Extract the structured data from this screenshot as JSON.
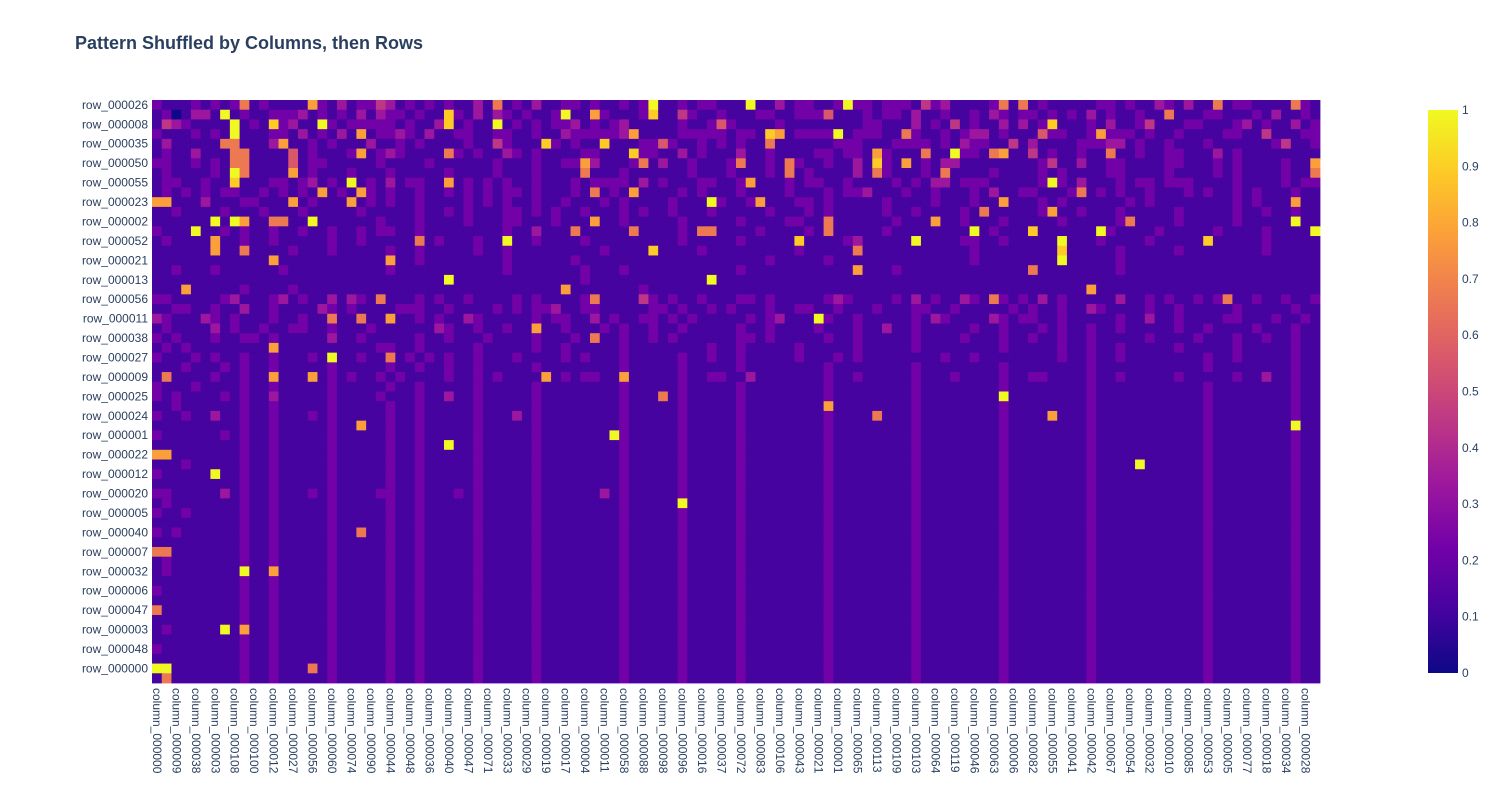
{
  "chart_data": {
    "type": "heatmap",
    "title": "Pattern Shuffled by Columns, then Rows",
    "colorscale": "plasma",
    "colorscale_stops": [
      "#0d0887",
      "#46039f",
      "#7201a8",
      "#9c179e",
      "#bd3786",
      "#d8576b",
      "#ed7953",
      "#fb9f3a",
      "#fdca26",
      "#f0f921"
    ],
    "zlim": [
      0,
      1
    ],
    "colorbar_ticks": [
      "0",
      "0.1",
      "0.2",
      "0.3",
      "0.4",
      "0.5",
      "0.6",
      "0.7",
      "0.8",
      "0.9",
      "1"
    ],
    "n_rows": 60,
    "n_cols": 120,
    "y_tick_labels": [
      "row_000026",
      "row_000008",
      "row_000035",
      "row_000050",
      "row_000055",
      "row_000023",
      "row_000002",
      "row_000052",
      "row_000021",
      "row_000013",
      "row_000056",
      "row_000011",
      "row_000038",
      "row_000027",
      "row_000009",
      "row_000025",
      "row_000024",
      "row_000001",
      "row_000022",
      "row_000012",
      "row_000020",
      "row_000005",
      "row_000040",
      "row_000007",
      "row_000032",
      "row_000006",
      "row_000047",
      "row_000003",
      "row_000048",
      "row_000000"
    ],
    "x_tick_labels": [
      "column_000000",
      "column_000009",
      "column_000038",
      "column_000003",
      "column_000108",
      "column_000100",
      "column_000012",
      "column_000027",
      "column_000056",
      "column_000060",
      "column_000074",
      "column_000090",
      "column_000044",
      "column_000048",
      "column_000036",
      "column_000040",
      "column_000047",
      "column_000071",
      "column_000033",
      "column_000029",
      "column_000019",
      "column_000017",
      "column_000004",
      "column_000011",
      "column_000058",
      "column_000088",
      "column_000098",
      "column_000096",
      "column_000016",
      "column_000037",
      "column_000072",
      "column_000083",
      "column_000106",
      "column_000043",
      "column_000021",
      "column_000001",
      "column_000065",
      "column_000113",
      "column_000109",
      "column_000103",
      "column_000064",
      "column_000119",
      "column_000046",
      "column_000063",
      "column_000006",
      "column_000082",
      "column_000055",
      "column_000041",
      "column_000042",
      "column_000067",
      "column_000054",
      "column_000032",
      "column_000010",
      "column_000085",
      "column_000053",
      "column_000005",
      "column_000077",
      "column_000018",
      "column_000034",
      "column_000028"
    ],
    "z_digits_0_to_9": [
      "211121212612111172131224312121211316121311221211212911212211191131221129221222142311112616121111122121132131161221111621",
      "120133191211222312121313221211821313212112911721112811421121112211222511121221311211213212212121312112116111221112131121",
      "143211119121823119212222212113812119121212231212311111211252111121111111122111312141211313128111213112411122111231211312",
      "211121219111221312131712232131122112211211322222371111222221221871222291222116211212331211152211272221211211112211411122",
      "131111166111371121211131121211112114211182121181112252112121211611111122211122221213221141311112223312112111211111124112",
      "121131116611115121112712321111621211321211112211182211312111311211112212217211161192216711412112116112112211131211111111",
      "221121216611115122111112111121111112111211227311126131121112611216211211318217121331111111124113112211112211121211112117",
      "121111219611117121112111211111211112111211116111211111121112111216121111316211121611112111121211112211112111121211112116",
      "122112118111221231219121312211712121211211121222213121112211271112122112111121213312221111129213111212212221111211112122",
      "121212122112121217121721211211212121221211121612171111212111211112111212231112112111213112211126121211211121211212111211",
      "771113111221117121117121211211112121211211211121211112111921127111221211111211112111211711121211111121211111111212111711",
      "112111121112111211111211111211212111221212112111212112111211111211121211111211211112161111127112111211111211111211211211",
      "111111919711661191111112111211112111221112111711211111211111211112211611111121117112111211111211111261111211111211111911",
      "211191121211211211211212211211111111211311161111161111216611112111121611111211111111912111811111192111121111121111211119",
      "121111711211211111211211111612111211911211112111111111211111211111811112311111911112211211111911121111211111811111211111",
      "111111711611112111211111211211111211211111111121111811112111111111211111611111111111211111111811111211111211111111211111",
      "111111111111711111111111711211111111211111121111111111111111111211111211111111111111211111111911111211111111111111111111",
      "112111211111121111111111211111111111211111112111211111111111211111111111711121111111111111611111111211111111111111111111",
      "111111111111111111111111111111911111111111112111111111111911111111111111111111111111111111111111111111111111111111111111",
      "111711111211112111111111111111111111111111711111112111111111111111111111111111111111111111111111711111111111111111111111",
      "221111123111231211313216111212112111121211112611114212112111221211111232111121312113216212131211111311212112126112112112",
      "112211211311211113212111122211211112121223112211111221211212111211221121112111221121111121211211321111211211111211111211",
      "321113212111211211611611711212113211111212211312112212121111121231119211211111213211113212211211111211311211112211121121",
      "121111312112112211211121111113211211211711211121211211211111211211112111211311211111211211121211211211111211211112111211",
      "212111211221211111311211111211211121111211121611211212111111221211111211211111211112111211211211211111211112111211211211",
      "121211111111711111111112211211111211111211211111211111111211211111211111211111211111111211111211211211111211111211111211",
      "211121211211211121911211612121211211121111212111211111211211211111211121211111111211211111111211211211111111211211111211",
      "111211121211211111211111211211211211111211111111211111211111211111111211111111211111111211111111211111111111211111111211",
      "161111211211711171212112121111211212111171212211711111211221131111111211211111211121111211221111211211111211111211311211",
      "211121111211211111211111211211111211111211111111211111211111211111111211111111211111111211111111211111111111211111111211",
      "212111121211311111211112111211311211111211111111211161211111211111111211111111211111111911111111211111111111211111111211",
      "112111111211211111211111211211111211111211111111211111211111211111111711111111211111111211111111211111111111211111111211",
      "211211311211211121211111211211111211131211111111211111211111211111111211116111211111111211117111211111111111211111111211",
      "111111111211211111211711211211111211111211111111211111211111211111111211111111211111111211111111211111111111211111111911",
      "211111121211211111211111211211111211111211111119211111211111211111111211111111211111111211111111211111111111211111111211",
      "111111111211211111211111211211911211111211111111211111211111211111111211111111211111111211111111211111111111211111111211",
      "771111111211211111211111211211111211111211111111211111211111211111111211111111211111111211111111211111111111211111111211",
      "111211111211211111211111211211111211111211111111211111211111211111111211111111211111111211111111211119111111211111111211",
      "211111911211211111211111211211111211111211111111211111211111211111111211111111211111111211111111211111111111211111111211",
      "111111111211211111211111211211111211111211111111211111211111211111111211111111211111111211111111211111111111211111111211",
      "221111131211211121211112211211121211111211111131211111211111211111111211111111211111111211111111211111111111211111111211",
      "121111111211211111211111211211111211111211111111211111911111211111111211111111211111111211111111211111111111211111111211",
      "211211111211211111211111211211111211111211111111211111211111211111111211111111211111111211111111211111111111211111111211",
      "111111111211211111211111211211111211111211111111211111211111211111111211111111211111111211111111211111111111211111111211",
      "212111111211211111211611211211111211111211111111211111211111211111111211111111211111111211111111211111111111211111111211",
      "111111111211211111211111211211111211111211111111211111211111211111111211111111211111111211111111211111111111211111111211",
      "661111111211211111211111211211111211111211111111211111211111211111111211111111211111111211111111211111111111211111111211",
      "121111111211211111211111211211111211111211111111211111211111211111111211111111211111111211111111211111111111211111111211",
      "121111111911711111211111211211111211111211111111211111211111211111111211111111211111111211111111211111111111211111111211",
      "111111111211211111211111211211111211111211111111211111211111211111111211111111211111111211111111211111111111211111111211",
      "211111111211211111211111211211111211111211111111211111211111211111111211111111211111111211111111211111111111211111111211",
      "111111111211211111211111211211111211111211111111211111211111211111111211111111211111111211111111211111111111211111111211",
      "611111111211211111211111211211111211111211111111211111211111211111111211111111211111111211111111211111111111211111111211",
      "111111111211211111211111211211111211111211111111211111211111211111111211111111211111111211111111211111111111211111111211",
      "121111191711211111211111211211111211111211111111211111211111211111111211111111211111111211111111211111111111211111111211",
      "111111111211211111211111211211111211111211111111211111211111211111111211111111211111111211111111211111111111211111111211",
      "211111111211211111211111211211111211111211111111211111211111211111111211111111211111111211111111211111111111211111111211",
      "111111111211211111211111211211111211111211111111211111211111211111111211111111211111111211111111211111111111211111111211",
      "991111111211211161211111211211111211111211111111211111211111211111111211111111211111111211111111211111111111211111111211",
      "161111111211211111211111211211111211111211111111211111211111211111111211111111211111111211111111211111111111211111111211"
    ]
  }
}
